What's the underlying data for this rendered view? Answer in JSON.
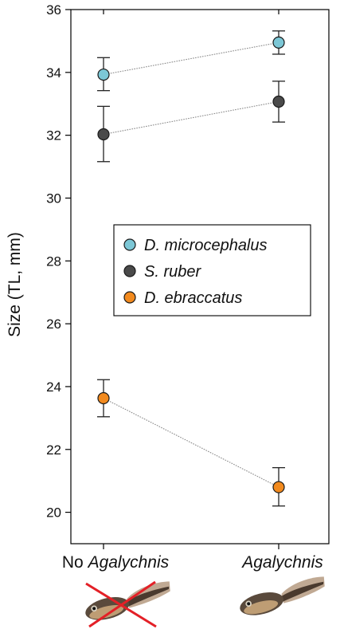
{
  "chart_data": {
    "type": "scatter",
    "title": "",
    "xlabel": "",
    "ylabel": "Size (TL, mm)",
    "categories": [
      {
        "parts": [
          {
            "text": "No ",
            "italic": false
          },
          {
            "text": "Agalychnis",
            "italic": true
          }
        ]
      },
      {
        "parts": [
          {
            "text": "Agalychnis",
            "italic": true
          }
        ]
      }
    ],
    "ylim": [
      19,
      36
    ],
    "yticks": [
      20,
      22,
      24,
      26,
      28,
      30,
      32,
      34,
      36
    ],
    "grid": false,
    "legend_position": "middle-right",
    "series": [
      {
        "name": "D. microcephalus",
        "color": "#7cc7d6",
        "values": [
          33.93,
          34.95
        ],
        "errors": [
          [
            33.42,
            34.47
          ],
          [
            34.58,
            35.32
          ]
        ]
      },
      {
        "name": "S. ruber",
        "color": "#4a4a4a",
        "values": [
          32.03,
          33.07
        ],
        "errors": [
          [
            31.16,
            32.92
          ],
          [
            32.42,
            33.72
          ]
        ]
      },
      {
        "name": "D. ebraccatus",
        "color": "#f28a1e",
        "values": [
          23.63,
          20.8
        ],
        "errors": [
          [
            23.04,
            24.22
          ],
          [
            20.2,
            21.42
          ]
        ]
      }
    ],
    "illustrations": [
      {
        "category_index": 0,
        "icon": "tadpole-crossed-out-icon",
        "cross_color": "#e32027"
      },
      {
        "category_index": 1,
        "icon": "tadpole-icon"
      }
    ]
  }
}
